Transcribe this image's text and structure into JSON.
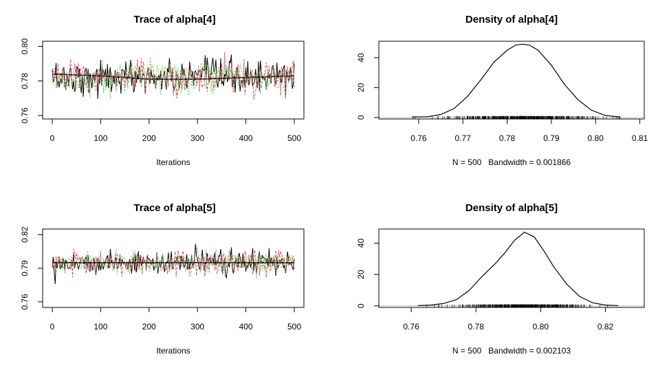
{
  "chart_data": [
    {
      "type": "line",
      "title": "Trace of alpha[4]",
      "xlabel": "Iterations",
      "ylabel": "",
      "xlim": [
        0,
        500
      ],
      "ylim": [
        0.758,
        0.803
      ],
      "x_ticks": [
        0,
        100,
        200,
        300,
        400,
        500
      ],
      "x_tick_labels": [
        "0",
        "100",
        "200",
        "300",
        "400",
        "500"
      ],
      "y_ticks": [
        0.76,
        0.78,
        0.8
      ],
      "y_tick_labels": [
        "0.76",
        "0.78",
        "0.80"
      ],
      "series_colors": [
        "#000000",
        "#df536b",
        "#61d04f"
      ],
      "trace_center": 0.782,
      "trace_spread": 0.009,
      "smooth_line": [
        [
          0,
          0.784
        ],
        [
          100,
          0.783
        ],
        [
          200,
          0.781
        ],
        [
          300,
          0.781
        ],
        [
          400,
          0.782
        ],
        [
          500,
          0.783
        ]
      ]
    },
    {
      "type": "line",
      "title": "Density of alpha[4]",
      "xlabel": "N = 500   Bandwidth = 0.001866",
      "ylabel": "",
      "xlim": [
        0.751,
        0.811
      ],
      "ylim": [
        -1,
        51
      ],
      "x_ticks": [
        0.76,
        0.77,
        0.78,
        0.79,
        0.8,
        0.81
      ],
      "x_tick_labels": [
        "0.76",
        "0.77",
        "0.78",
        "0.79",
        "0.80",
        "0.81"
      ],
      "y_ticks": [
        0,
        20,
        40
      ],
      "y_tick_labels": [
        "0",
        "20",
        "40"
      ],
      "density_x": [
        0.7585,
        0.762,
        0.765,
        0.768,
        0.771,
        0.774,
        0.777,
        0.78,
        0.782,
        0.7835,
        0.785,
        0.787,
        0.79,
        0.793,
        0.796,
        0.799,
        0.802,
        0.8055
      ],
      "density_y": [
        0.3,
        0.5,
        2,
        6,
        14,
        25,
        37,
        45,
        48.5,
        49,
        48.5,
        45,
        35,
        22,
        12,
        5,
        1.5,
        0.3
      ],
      "rug_range": [
        0.7585,
        0.8055
      ],
      "rug_center": 0.7835,
      "rug_spread": 0.008
    },
    {
      "type": "line",
      "title": "Trace of alpha[5]",
      "xlabel": "Iterations",
      "ylabel": "",
      "xlim": [
        0,
        500
      ],
      "ylim": [
        0.755,
        0.825
      ],
      "x_ticks": [
        0,
        100,
        200,
        300,
        400,
        500
      ],
      "x_tick_labels": [
        "0",
        "100",
        "200",
        "300",
        "400",
        "500"
      ],
      "y_ticks": [
        0.76,
        0.79,
        0.82
      ],
      "y_tick_labels": [
        "0.76",
        "0.79",
        "0.82"
      ],
      "series_colors": [
        "#000000",
        "#df536b",
        "#61d04f"
      ],
      "trace_center": 0.795,
      "trace_spread": 0.01,
      "smooth_line": [
        [
          0,
          0.795
        ],
        [
          100,
          0.795
        ],
        [
          200,
          0.795
        ],
        [
          300,
          0.795
        ],
        [
          400,
          0.795
        ],
        [
          500,
          0.795
        ]
      ]
    },
    {
      "type": "line",
      "title": "Density of alpha[5]",
      "xlabel": "N = 500   Bandwidth = 0.002103",
      "ylabel": "",
      "xlim": [
        0.75,
        0.832
      ],
      "ylim": [
        -1,
        49
      ],
      "x_ticks": [
        0.76,
        0.78,
        0.8,
        0.82
      ],
      "x_tick_labels": [
        "0.76",
        "0.78",
        "0.80",
        "0.82"
      ],
      "y_ticks": [
        0,
        20,
        40
      ],
      "y_tick_labels": [
        "0",
        "20",
        "40"
      ],
      "density_x": [
        0.762,
        0.766,
        0.77,
        0.774,
        0.778,
        0.782,
        0.786,
        0.789,
        0.792,
        0.795,
        0.798,
        0.801,
        0.804,
        0.808,
        0.812,
        0.816,
        0.82,
        0.824
      ],
      "density_y": [
        0.2,
        0.5,
        1.5,
        4,
        10,
        19,
        27,
        34,
        42,
        47,
        44,
        35,
        25,
        14,
        6,
        2,
        0.5,
        0.2
      ],
      "rug_range": [
        0.762,
        0.824
      ],
      "rug_center": 0.795,
      "rug_spread": 0.009
    }
  ]
}
